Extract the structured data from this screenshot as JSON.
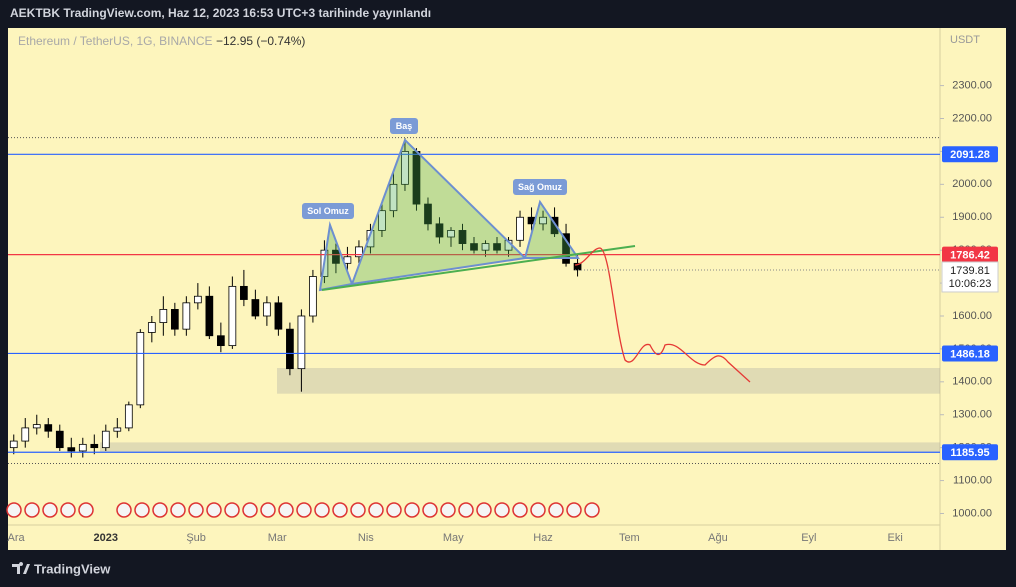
{
  "header": {
    "title": "AEKTBK TradingView.com, Haz 12, 2023 16:53 UTC+3 tarihinde yayınlandı"
  },
  "footer": {
    "brand": "TradingView"
  },
  "chart_data": {
    "type": "candlestick",
    "title": "Ethereum / TetherUS, 1G, BINANCE",
    "change": "−12.95 (−0.74%)",
    "currency": "USDT",
    "up_color": "#ffffff",
    "down_color": "#000000",
    "series": {
      "open": [
        1200,
        1220,
        1260,
        1270,
        1250,
        1200,
        1190,
        1210,
        1200,
        1250,
        1260,
        1330,
        1550,
        1580,
        1620,
        1560,
        1640,
        1660,
        1540,
        1510,
        1690,
        1650,
        1600,
        1640,
        1560,
        1440,
        1600,
        1720,
        1800,
        1760,
        1780,
        1810,
        1860,
        1920,
        2000,
        2100,
        1940,
        1880,
        1840,
        1860,
        1820,
        1800,
        1820,
        1800,
        1830,
        1900,
        1880,
        1900,
        1850,
        1760
      ],
      "high": [
        1240,
        1290,
        1300,
        1290,
        1270,
        1230,
        1230,
        1240,
        1270,
        1290,
        1340,
        1560,
        1600,
        1660,
        1640,
        1660,
        1700,
        1690,
        1580,
        1720,
        1740,
        1680,
        1660,
        1660,
        1580,
        1620,
        1740,
        1830,
        1820,
        1810,
        1830,
        1880,
        1940,
        2040,
        2140,
        2110,
        1960,
        1900,
        1870,
        1880,
        1840,
        1830,
        1840,
        1840,
        1920,
        1930,
        1920,
        1930,
        1880,
        1790
      ],
      "low": [
        1180,
        1200,
        1240,
        1230,
        1190,
        1170,
        1170,
        1180,
        1190,
        1230,
        1250,
        1320,
        1520,
        1540,
        1540,
        1540,
        1620,
        1530,
        1490,
        1500,
        1630,
        1590,
        1570,
        1540,
        1420,
        1370,
        1580,
        1700,
        1730,
        1740,
        1760,
        1790,
        1840,
        1900,
        1980,
        1920,
        1860,
        1820,
        1810,
        1800,
        1790,
        1780,
        1790,
        1780,
        1810,
        1860,
        1860,
        1840,
        1750,
        1720
      ],
      "close": [
        1220,
        1260,
        1270,
        1250,
        1200,
        1190,
        1210,
        1200,
        1250,
        1260,
        1330,
        1550,
        1580,
        1620,
        1560,
        1640,
        1660,
        1540,
        1510,
        1690,
        1650,
        1600,
        1640,
        1560,
        1440,
        1600,
        1720,
        1800,
        1760,
        1780,
        1810,
        1860,
        1920,
        2000,
        2100,
        1940,
        1880,
        1840,
        1860,
        1820,
        1800,
        1820,
        1800,
        1830,
        1900,
        1880,
        1900,
        1850,
        1760,
        1740
      ]
    },
    "xlim": [
      -0.5,
      80.5
    ],
    "xticks": [
      {
        "value": 0.2,
        "label": "Ara"
      },
      {
        "value": 8,
        "label": "2023"
      },
      {
        "value": 15.85,
        "label": "Şub"
      },
      {
        "value": 22.9,
        "label": "Mar"
      },
      {
        "value": 30.6,
        "label": "Nis"
      },
      {
        "value": 38.2,
        "label": "May"
      },
      {
        "value": 46,
        "label": "Haz"
      },
      {
        "value": 53.5,
        "label": "Tem"
      },
      {
        "value": 61.2,
        "label": "Ağu"
      },
      {
        "value": 69.1,
        "label": "Eyl"
      },
      {
        "value": 76.6,
        "label": "Eki"
      }
    ],
    "ylim": [
      965,
      2475
    ],
    "yticks": [
      {
        "value": 1000,
        "label": "1000.00"
      },
      {
        "value": 1100,
        "label": "1100.00"
      },
      {
        "value": 1200,
        "label": "1200.00"
      },
      {
        "value": 1300,
        "label": "1300.00"
      },
      {
        "value": 1400,
        "label": "1400.00"
      },
      {
        "value": 1500,
        "label": "1500.00"
      },
      {
        "value": 1600,
        "label": "1600.00"
      },
      {
        "value": 1700,
        "label": "1700.00"
      },
      {
        "value": 1800,
        "label": "1800.00"
      },
      {
        "value": 1900,
        "label": "1900.00"
      },
      {
        "value": 2000,
        "label": "2000.00"
      },
      {
        "value": 2100,
        "label": "2100.00"
      },
      {
        "value": 2200,
        "label": "2200.00"
      },
      {
        "value": 2300,
        "label": "2300.00"
      }
    ],
    "levels": [
      {
        "value": 2091.28,
        "color": "#2962ff"
      },
      {
        "value": 1786.42,
        "color": "#f23645"
      },
      {
        "value": 1486.18,
        "color": "#2962ff"
      },
      {
        "value": 1185.95,
        "color": "#2962ff"
      }
    ],
    "dotted_levels": [
      2142,
      1152
    ],
    "zones": [
      [
        1364,
        1442
      ],
      [
        1188,
        1216
      ]
    ],
    "last_price": 1739.81,
    "countdown": "10:06:23",
    "annotations": [
      "Sol Omuz",
      "Baş",
      "Sağ Omuz"
    ]
  }
}
